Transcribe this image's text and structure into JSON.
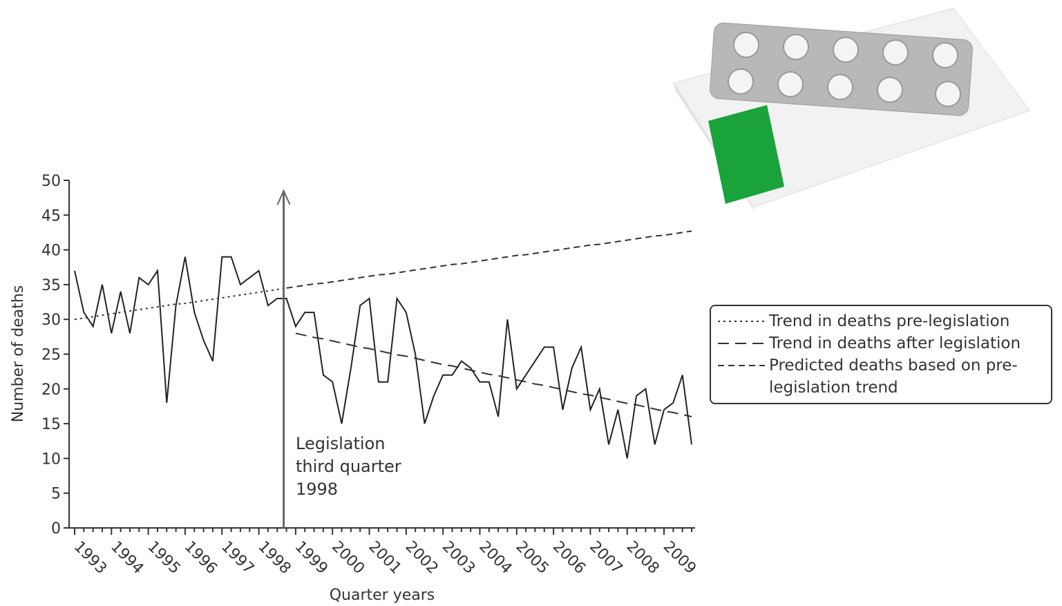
{
  "chart_data": {
    "type": "line",
    "xlabel": "Quarter years",
    "ylabel": "Number of deaths",
    "categories": [
      "1993",
      null,
      null,
      null,
      "1994",
      null,
      null,
      null,
      "1995",
      null,
      null,
      null,
      "1996",
      null,
      null,
      null,
      "1997",
      null,
      null,
      null,
      "1998",
      null,
      null,
      null,
      "1999",
      null,
      null,
      null,
      "2000",
      null,
      null,
      null,
      "2001",
      null,
      null,
      null,
      "2002",
      null,
      null,
      null,
      "2003",
      null,
      null,
      null,
      "2004",
      null,
      null,
      null,
      "2005",
      null,
      null,
      null,
      "2006",
      null,
      null,
      null,
      "2007",
      null,
      null,
      null,
      "2008",
      null,
      null,
      null,
      "2009",
      null,
      null,
      null
    ],
    "series": [
      {
        "color": "#222",
        "line_style": "solid",
        "values": [
          37,
          31,
          29,
          35,
          28,
          34,
          28,
          36,
          35,
          37,
          18,
          32,
          39,
          31,
          27,
          24,
          39,
          39,
          35,
          36,
          37,
          32,
          33,
          33,
          29,
          31,
          31,
          22,
          21,
          15,
          23,
          32,
          33,
          21,
          21,
          33,
          31,
          25,
          15,
          19,
          22,
          22,
          24,
          23,
          21,
          21,
          16,
          30,
          20,
          22,
          24,
          26,
          26,
          17,
          23,
          26,
          17,
          20,
          12,
          17,
          10,
          19,
          20,
          12,
          17,
          18,
          22,
          12
        ]
      },
      {
        "name": "Trend in deaths pre-legislation",
        "color": "#333",
        "line_style": "dotted",
        "values": [
          30.0,
          30.2,
          30.4,
          30.6,
          30.8,
          31.0,
          31.2,
          31.4,
          31.6,
          31.8,
          32.0,
          32.2,
          32.3,
          32.5,
          32.7,
          32.9,
          33.1,
          33.3,
          33.5,
          33.7,
          33.9,
          34.1,
          34.3,
          34.5,
          null,
          null,
          null,
          null,
          null,
          null,
          null,
          null,
          null,
          null,
          null,
          null,
          null,
          null,
          null,
          null,
          null,
          null,
          null,
          null,
          null,
          null,
          null,
          null,
          null,
          null,
          null,
          null,
          null,
          null,
          null,
          null,
          null,
          null,
          null,
          null,
          null,
          null,
          null,
          null,
          null,
          null,
          null,
          null
        ]
      },
      {
        "name": "Trend in deaths after legislation",
        "color": "#333",
        "line_style": "long-dashed",
        "values": [
          null,
          null,
          null,
          null,
          null,
          null,
          null,
          null,
          null,
          null,
          null,
          null,
          null,
          null,
          null,
          null,
          null,
          null,
          null,
          null,
          null,
          null,
          null,
          null,
          28.0,
          27.7,
          27.4,
          27.2,
          26.9,
          26.6,
          26.3,
          26.0,
          25.8,
          25.5,
          25.2,
          24.9,
          24.7,
          24.4,
          24.1,
          23.8,
          23.5,
          23.3,
          23.0,
          22.7,
          22.4,
          22.1,
          21.9,
          21.6,
          21.3,
          21.0,
          20.7,
          20.5,
          20.2,
          19.9,
          19.6,
          19.3,
          19.1,
          18.8,
          18.5,
          18.2,
          17.9,
          17.7,
          17.4,
          17.1,
          16.8,
          16.6,
          16.3,
          16.0
        ]
      },
      {
        "name": "Predicted deaths based on pre-legislation trend",
        "color": "#333",
        "line_style": "dashed",
        "values": [
          null,
          null,
          null,
          null,
          null,
          null,
          null,
          null,
          null,
          null,
          null,
          null,
          null,
          null,
          null,
          null,
          null,
          null,
          null,
          null,
          null,
          null,
          null,
          34.5,
          34.7,
          34.9,
          35.1,
          35.2,
          35.4,
          35.6,
          35.8,
          36.0,
          36.2,
          36.4,
          36.5,
          36.7,
          36.9,
          37.1,
          37.3,
          37.5,
          37.7,
          37.9,
          38.0,
          38.2,
          38.4,
          38.6,
          38.8,
          39.0,
          39.2,
          39.3,
          39.5,
          39.7,
          39.9,
          40.1,
          40.3,
          40.5,
          40.7,
          40.8,
          41.0,
          41.2,
          41.4,
          41.6,
          41.8,
          42.0,
          42.1,
          42.3,
          42.5,
          42.7
        ]
      }
    ],
    "annotation": [
      "Legislation",
      "third quarter",
      "1998"
    ],
    "ylim": [
      0,
      50
    ],
    "yticks": [
      0,
      5,
      10,
      15,
      20,
      25,
      30,
      35,
      40,
      45,
      50
    ],
    "grid": false,
    "legend": "right"
  }
}
